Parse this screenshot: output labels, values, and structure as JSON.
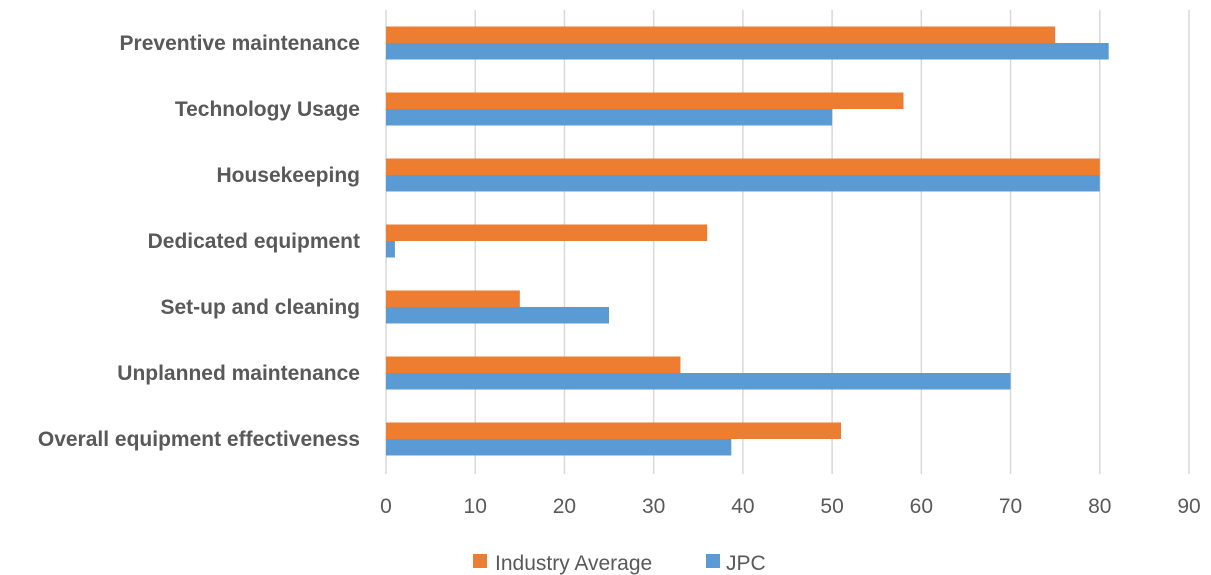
{
  "chart_data": {
    "type": "bar",
    "orientation": "horizontal",
    "categories": [
      "Preventive maintenance",
      "Technology Usage",
      "Housekeeping",
      "Dedicated equipment",
      "Set-up and cleaning",
      "Unplanned maintenance",
      "Overall equipment effectiveness"
    ],
    "series": [
      {
        "name": "Industry Average",
        "color": "#ed7d31",
        "values": [
          75,
          58,
          80,
          36,
          15,
          33,
          51
        ]
      },
      {
        "name": "JPC",
        "color": "#5b9bd5",
        "values": [
          81,
          50,
          80,
          1,
          25,
          70,
          38.7
        ]
      }
    ],
    "x_ticks": [
      "0",
      "10",
      "20",
      "30",
      "40",
      "50",
      "60",
      "70",
      "80",
      "90"
    ],
    "xlim": [
      0,
      90
    ],
    "grid": "vertical",
    "legend": "bottom"
  }
}
